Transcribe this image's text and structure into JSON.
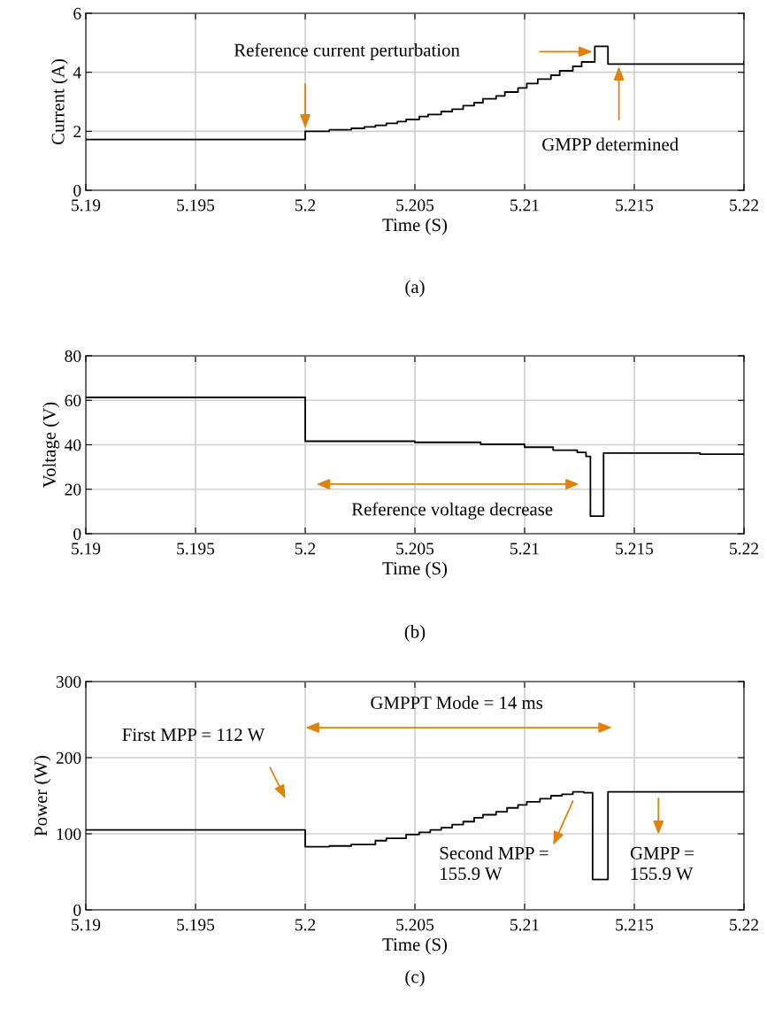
{
  "chart_data": [
    {
      "type": "step",
      "xlabel": "Time (S)",
      "ylabel": "Current (A)",
      "xlim": [
        5.19,
        5.22
      ],
      "ylim": [
        0,
        6
      ],
      "xticks": [
        5.19,
        5.195,
        5.2,
        5.205,
        5.21,
        5.215,
        5.22
      ],
      "yticks": [
        0,
        2,
        4,
        6
      ],
      "grid": true,
      "series": [
        {
          "color": "#000000",
          "x": [
            5.19,
            5.2,
            5.2011,
            5.2021,
            5.2027,
            5.2032,
            5.2037,
            5.2042,
            5.2046,
            5.2052,
            5.2056,
            5.2062,
            5.2067,
            5.2072,
            5.2077,
            5.2081,
            5.2087,
            5.2091,
            5.2097,
            5.2101,
            5.2106,
            5.2112,
            5.2116,
            5.2122,
            5.2126,
            5.2132,
            5.2138,
            5.22
          ],
          "values": [
            1.72,
            2.0,
            2.05,
            2.1,
            2.15,
            2.2,
            2.27,
            2.33,
            2.4,
            2.5,
            2.57,
            2.67,
            2.75,
            2.87,
            2.97,
            3.1,
            3.2,
            3.33,
            3.47,
            3.62,
            3.77,
            3.9,
            4.05,
            4.2,
            4.35,
            4.88,
            4.28,
            4.36
          ]
        }
      ],
      "annotations": [
        "Reference current perturbation",
        "GMPP determined",
        "(a)"
      ]
    },
    {
      "type": "step",
      "xlabel": "Time (S)",
      "ylabel": "Voltage (V)",
      "xlim": [
        5.19,
        5.22
      ],
      "ylim": [
        0,
        80
      ],
      "xticks": [
        5.19,
        5.195,
        5.2,
        5.205,
        5.21,
        5.215,
        5.22
      ],
      "yticks": [
        0,
        20,
        40,
        60,
        80
      ],
      "grid": true,
      "series": [
        {
          "color": "#000000",
          "x": [
            5.19,
            5.2,
            5.205,
            5.208,
            5.21,
            5.2113,
            5.2124,
            5.2128,
            5.213,
            5.2136,
            5.218,
            5.22
          ],
          "values": [
            61.3,
            41.6,
            41.1,
            40.2,
            38.9,
            37.6,
            36.6,
            34.8,
            7.9,
            36.3,
            35.8,
            35.5
          ]
        }
      ],
      "annotations": [
        "Reference voltage decrease",
        "(b)"
      ]
    },
    {
      "type": "step",
      "xlabel": "Time (S)",
      "ylabel": "Power (W)",
      "xlim": [
        5.19,
        5.22
      ],
      "ylim": [
        0,
        300
      ],
      "xticks": [
        5.19,
        5.195,
        5.2,
        5.205,
        5.21,
        5.215,
        5.22
      ],
      "yticks": [
        0,
        100,
        200,
        300
      ],
      "grid": true,
      "series": [
        {
          "color": "#000000",
          "x": [
            5.19,
            5.2,
            5.2011,
            5.2021,
            5.2032,
            5.2037,
            5.2046,
            5.2052,
            5.2057,
            5.2062,
            5.2067,
            5.2072,
            5.2077,
            5.2081,
            5.2087,
            5.2092,
            5.2097,
            5.2101,
            5.2107,
            5.2112,
            5.2117,
            5.2122,
            5.2127,
            5.2131,
            5.2138,
            5.22
          ],
          "values": [
            105,
            83,
            84,
            86,
            91,
            94,
            99,
            102,
            105,
            108,
            112,
            116,
            121,
            125,
            129,
            134,
            138,
            142,
            146,
            150,
            152,
            155,
            154,
            40,
            155,
            155
          ]
        }
      ],
      "annotations": [
        "GMPPT Mode = 14 ms",
        "First MPP = 112 W",
        "Second MPP =\n155.9 W",
        "GMPP =\n155.9 W",
        "(c)"
      ]
    }
  ]
}
